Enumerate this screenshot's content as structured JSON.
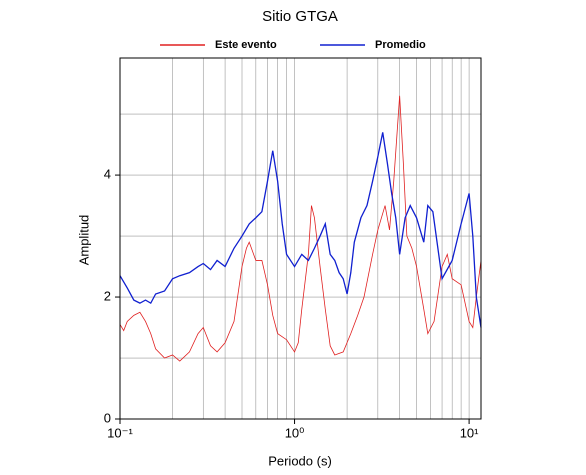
{
  "chart_data": {
    "type": "line",
    "title": "Sitio GTGA",
    "xlabel": "Periodo (s)",
    "ylabel": "Amplitud",
    "xscale": "log",
    "xlim": [
      0.1,
      11.7
    ],
    "ylim": [
      0,
      5.92
    ],
    "xticks": [
      {
        "value": 0.1,
        "label": "10⁻¹"
      },
      {
        "value": 1,
        "label": "10⁰"
      },
      {
        "value": 10,
        "label": "10¹"
      }
    ],
    "yticks": [
      0,
      2,
      4
    ],
    "xgrid": [
      0.2,
      0.3,
      0.4,
      0.5,
      0.6,
      0.7,
      0.8,
      0.9,
      1,
      2,
      3,
      4,
      5,
      6,
      7,
      8,
      9,
      10
    ],
    "ygrid": [
      1,
      2,
      3,
      4,
      5
    ],
    "grid": true,
    "legend": "top",
    "series": [
      {
        "name": "Este evento",
        "color": "#e02020",
        "x": [
          0.1,
          0.105,
          0.11,
          0.12,
          0.13,
          0.14,
          0.15,
          0.16,
          0.18,
          0.2,
          0.22,
          0.25,
          0.28,
          0.3,
          0.33,
          0.36,
          0.4,
          0.45,
          0.5,
          0.53,
          0.55,
          0.6,
          0.65,
          0.7,
          0.75,
          0.8,
          0.9,
          1.0,
          1.05,
          1.1,
          1.2,
          1.25,
          1.3,
          1.4,
          1.5,
          1.6,
          1.7,
          1.9,
          2.1,
          2.3,
          2.5,
          2.8,
          3.0,
          3.3,
          3.5,
          3.7,
          4.0,
          4.2,
          4.4,
          4.7,
          5.0,
          5.5,
          5.8,
          6.3,
          7,
          7.5,
          8,
          9,
          10,
          10.5,
          11,
          11.7
        ],
        "values": [
          1.55,
          1.45,
          1.6,
          1.7,
          1.75,
          1.6,
          1.4,
          1.15,
          1.0,
          1.05,
          0.95,
          1.1,
          1.4,
          1.5,
          1.2,
          1.1,
          1.25,
          1.6,
          2.5,
          2.8,
          2.9,
          2.6,
          2.6,
          2.2,
          1.7,
          1.4,
          1.3,
          1.1,
          1.25,
          1.8,
          2.7,
          3.5,
          3.3,
          2.5,
          1.8,
          1.2,
          1.05,
          1.1,
          1.4,
          1.7,
          2.0,
          2.7,
          3.1,
          3.5,
          3.1,
          3.9,
          5.3,
          4.2,
          3.0,
          2.8,
          2.5,
          1.8,
          1.4,
          1.6,
          2.5,
          2.7,
          2.3,
          2.2,
          1.6,
          1.5,
          2.0,
          2.6
        ]
      },
      {
        "name": "Promedio",
        "color": "#1020d0",
        "x": [
          0.1,
          0.11,
          0.12,
          0.13,
          0.14,
          0.15,
          0.16,
          0.18,
          0.2,
          0.22,
          0.25,
          0.28,
          0.3,
          0.33,
          0.36,
          0.4,
          0.45,
          0.5,
          0.55,
          0.6,
          0.65,
          0.7,
          0.75,
          0.8,
          0.85,
          0.9,
          1.0,
          1.1,
          1.2,
          1.3,
          1.4,
          1.5,
          1.6,
          1.7,
          1.8,
          1.9,
          2.0,
          2.1,
          2.2,
          2.4,
          2.6,
          2.8,
          3.0,
          3.2,
          3.4,
          3.6,
          3.8,
          4.0,
          4.3,
          4.6,
          5.0,
          5.5,
          5.8,
          6.2,
          7,
          8,
          9,
          10,
          10.5,
          11,
          11.7
        ],
        "values": [
          2.35,
          2.15,
          1.95,
          1.9,
          1.95,
          1.9,
          2.05,
          2.1,
          2.3,
          2.35,
          2.4,
          2.5,
          2.55,
          2.45,
          2.6,
          2.5,
          2.8,
          3.0,
          3.2,
          3.3,
          3.4,
          3.9,
          4.4,
          3.9,
          3.2,
          2.7,
          2.5,
          2.7,
          2.6,
          2.8,
          3.0,
          3.2,
          2.7,
          2.6,
          2.4,
          2.3,
          2.05,
          2.4,
          2.9,
          3.3,
          3.5,
          3.9,
          4.3,
          4.7,
          4.2,
          3.7,
          3.3,
          2.7,
          3.3,
          3.5,
          3.3,
          2.9,
          3.5,
          3.4,
          2.3,
          2.6,
          3.2,
          3.7,
          3.0,
          2.0,
          1.5
        ]
      }
    ]
  }
}
